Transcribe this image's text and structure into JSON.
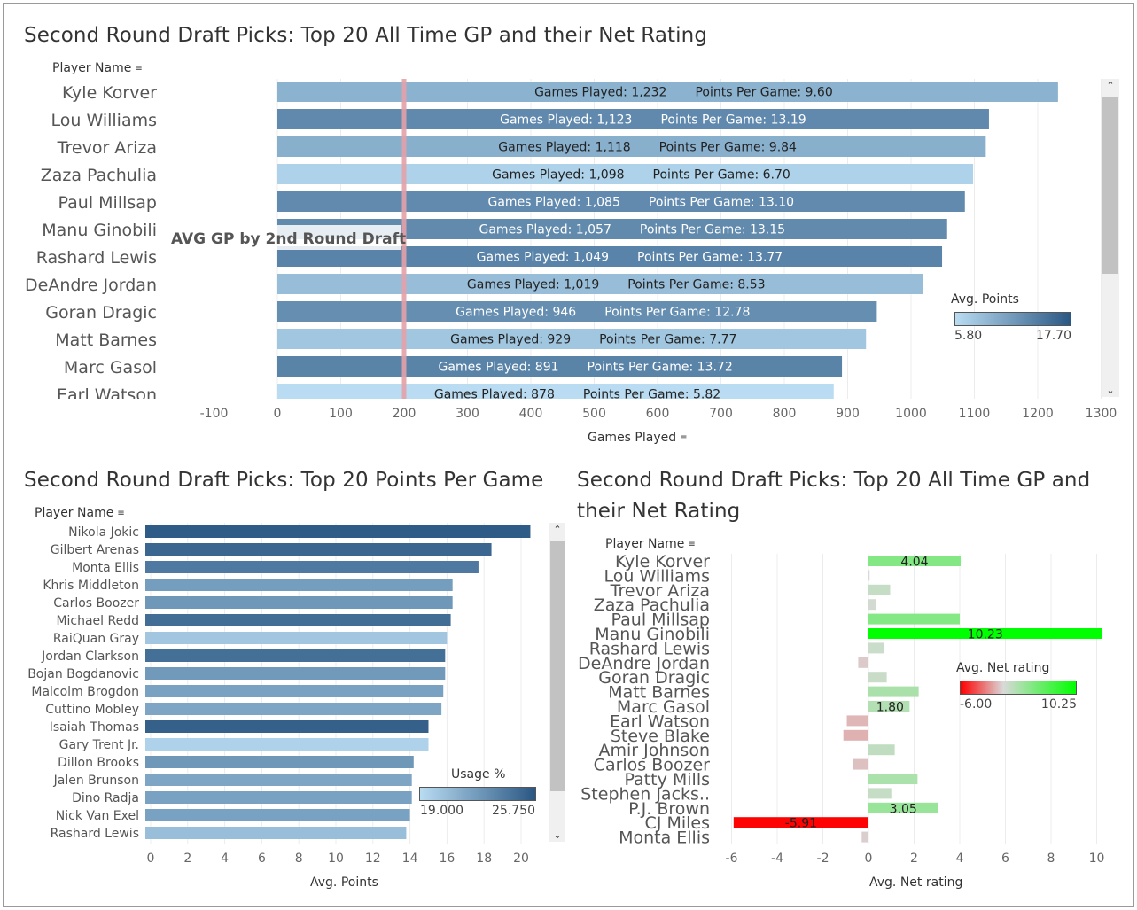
{
  "colors": {
    "bar_low": "#b9dcf2",
    "bar_high": "#2a5783",
    "net_low": "#ff0000",
    "net_mid": "#d9d9d9",
    "net_high": "#00ff00",
    "ref_line": "#e3a1a9",
    "grid": "#ececec"
  },
  "top": {
    "title": "Second Round Draft Picks: Top 20 All Time GP and their Net Rating",
    "row_header": "Player Name",
    "axis_title": "Games Played",
    "reference_label": "AVG GP by 2nd Round Draft",
    "legend": {
      "title": "Avg. Points",
      "min": "5.80",
      "max": "17.70"
    },
    "gp_prefix": "Games Played: ",
    "ppg_prefix": "Points Per Game: "
  },
  "bottom_left": {
    "title": "Second Round Draft Picks: Top 20 Points Per Game",
    "row_header": "Player Name",
    "axis_title": "Avg. Points",
    "legend": {
      "title": "Usage %",
      "min": "19.000",
      "max": "25.750"
    }
  },
  "bottom_right": {
    "title_line1": "Second Round Draft Picks: Top 20 All Time GP and",
    "title_line2": "their Net Rating",
    "row_header": "Player Name",
    "axis_title": "Avg. Net rating",
    "legend": {
      "title": "Avg. Net rating",
      "min": "-6.00",
      "max": "10.25"
    }
  },
  "chart_data": [
    {
      "type": "bar",
      "orientation": "horizontal",
      "title": "Second Round Draft Picks: Top 20 All Time GP and their Net Rating",
      "xlabel": "Games Played",
      "ylabel": "Player Name",
      "xlim": [
        -100,
        1300
      ],
      "xticks": [
        -100,
        0,
        100,
        200,
        300,
        400,
        500,
        600,
        700,
        800,
        900,
        1000,
        1100,
        1200,
        1300
      ],
      "reference_line": {
        "value": 200,
        "label": "AVG GP by 2nd Round Draft"
      },
      "color_by": "Avg. Points",
      "color_range": [
        5.8,
        17.7
      ],
      "categories": [
        "Kyle Korver",
        "Lou Williams",
        "Trevor Ariza",
        "Zaza Pachulia",
        "Paul Millsap",
        "Manu Ginobili",
        "Rashard Lewis",
        "DeAndre Jordan",
        "Goran Dragic",
        "Matt Barnes",
        "Marc Gasol",
        "Earl Watson"
      ],
      "values": [
        1232,
        1123,
        1118,
        1098,
        1085,
        1057,
        1049,
        1019,
        946,
        929,
        891,
        878
      ],
      "values_label": [
        "1,232",
        "1,123",
        "1,118",
        "1,098",
        "1,085",
        "1,057",
        "1,049",
        "1,019",
        "946",
        "929",
        "891",
        "878"
      ],
      "points_per_game": [
        9.6,
        13.19,
        9.84,
        6.7,
        13.1,
        13.15,
        13.77,
        8.53,
        12.78,
        7.77,
        13.72,
        5.82
      ],
      "points_per_game_label": [
        "9.60",
        "13.19",
        "9.84",
        "6.70",
        "13.10",
        "13.15",
        "13.77",
        "8.53",
        "12.78",
        "7.77",
        "13.72",
        "5.82"
      ]
    },
    {
      "type": "bar",
      "orientation": "horizontal",
      "title": "Second Round Draft Picks: Top 20 Points Per Game",
      "xlabel": "Avg. Points",
      "ylabel": "Player Name",
      "xlim": [
        0,
        22
      ],
      "xticks": [
        0,
        2,
        4,
        6,
        8,
        10,
        12,
        14,
        16,
        18,
        20
      ],
      "color_by": "Usage %",
      "color_range": [
        19.0,
        25.75
      ],
      "categories": [
        "Nikola Jokic",
        "Gilbert Arenas",
        "Monta Ellis",
        "Khris Middleton",
        "Carlos Boozer",
        "Michael Redd",
        "RaiQuan Gray",
        "Jordan Clarkson",
        "Bojan Bogdanovic",
        "Malcolm Brogdon",
        "Cuttino Mobley",
        "Isaiah Thomas",
        "Gary Trent Jr.",
        "Dillon Brooks",
        "Jalen Brunson",
        "Dino Radja",
        "Nick Van Exel",
        "Rashard Lewis"
      ],
      "values": [
        20.5,
        18.4,
        17.7,
        16.3,
        16.3,
        16.2,
        16.0,
        15.9,
        15.9,
        15.8,
        15.7,
        15.0,
        15.0,
        14.2,
        14.1,
        14.1,
        14.0,
        13.8
      ],
      "usage": [
        25.5,
        25.0,
        24.0,
        22.2,
        22.5,
        24.6,
        20.1,
        24.5,
        22.4,
        22.0,
        21.8,
        25.3,
        19.5,
        22.5,
        21.8,
        22.0,
        22.0,
        20.5
      ]
    },
    {
      "type": "bar",
      "orientation": "horizontal",
      "title": "Second Round Draft Picks: Top 20 All Time GP and their Net Rating",
      "xlabel": "Avg. Net rating",
      "ylabel": "Player Name",
      "xlim": [
        -6.5,
        10.5
      ],
      "xticks": [
        -6,
        -4,
        -2,
        0,
        2,
        4,
        6,
        8,
        10
      ],
      "color_range": [
        -6.0,
        10.25
      ],
      "categories": [
        "Kyle Korver",
        "Lou Williams",
        "Trevor Ariza",
        "Zaza Pachulia",
        "Paul Millsap",
        "Manu Ginobili",
        "Rashard Lewis",
        "DeAndre Jordan",
        "Goran Dragic",
        "Matt Barnes",
        "Marc Gasol",
        "Earl Watson",
        "Steve Blake",
        "Amir Johnson",
        "Carlos Boozer",
        "Patty Mills",
        "Stephen Jacks..",
        "P.J. Brown",
        "CJ Miles",
        "Monta Ellis"
      ],
      "values": [
        4.04,
        0.05,
        0.95,
        0.35,
        4.0,
        10.23,
        0.7,
        -0.45,
        0.8,
        2.2,
        1.8,
        -0.95,
        -1.1,
        1.15,
        -0.7,
        2.15,
        1.0,
        3.05,
        -5.91,
        -0.3
      ],
      "data_labels": [
        "4.04",
        "",
        "",
        "",
        "",
        "10.23",
        "",
        "",
        "",
        "",
        "1.80",
        "",
        "",
        "",
        "",
        "",
        "",
        "3.05",
        "-5.91",
        ""
      ]
    }
  ]
}
